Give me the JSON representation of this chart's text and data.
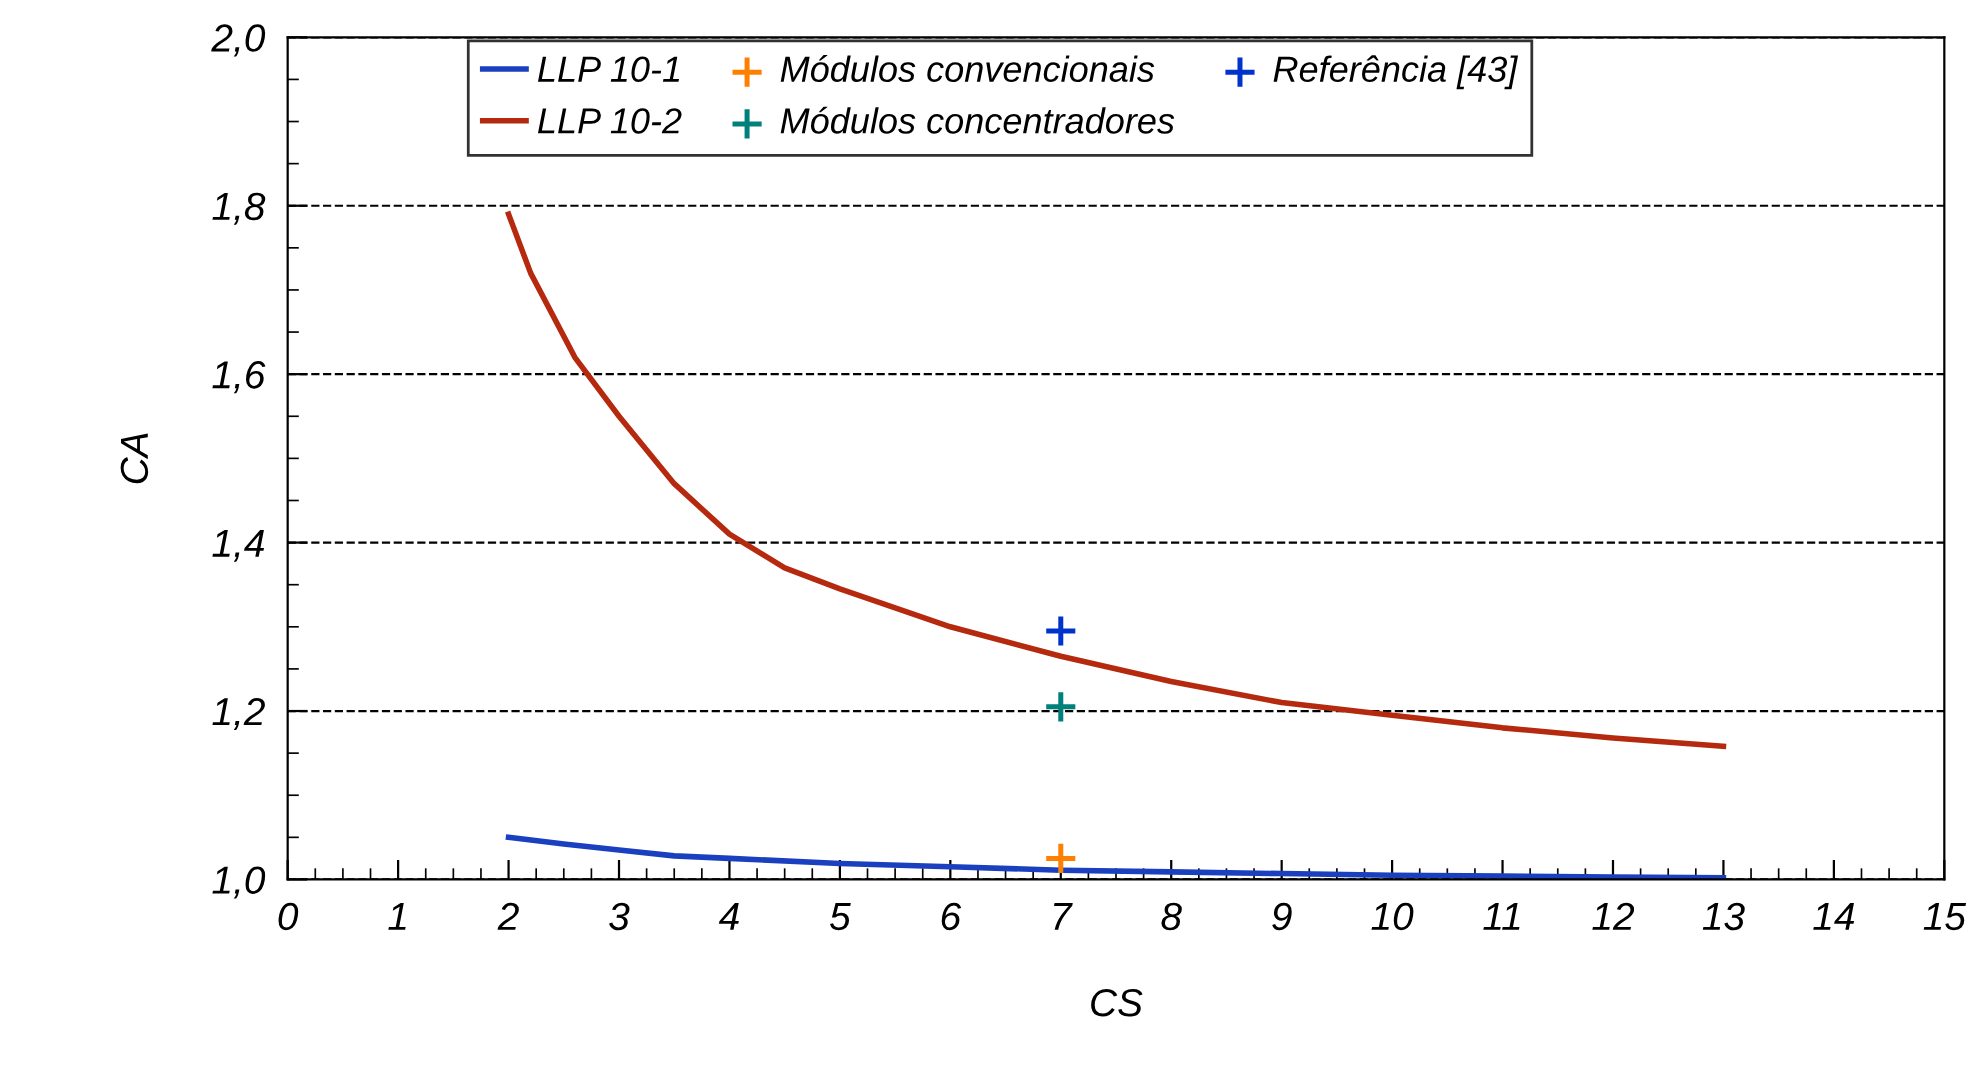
{
  "chart_data": {
    "type": "line",
    "xlabel": "CS",
    "ylabel": "CA",
    "series": [
      {
        "name": "LLP 10-1",
        "color": "#1a3fbf",
        "x": [
          2,
          2.5,
          3,
          3.5,
          4,
          5,
          6,
          7,
          8,
          9,
          10,
          11,
          12,
          13
        ],
        "values": [
          1.05,
          1.042,
          1.035,
          1.028,
          1.025,
          1.019,
          1.015,
          1.011,
          1.009,
          1.007,
          1.005,
          1.004,
          1.003,
          1.002
        ]
      },
      {
        "name": "LLP 10-2",
        "color": "#b52a0e",
        "x": [
          2,
          2.2,
          2.6,
          3,
          3.5,
          4,
          4.5,
          5,
          6,
          7,
          8,
          9,
          10,
          11,
          12,
          13
        ],
        "values": [
          1.79,
          1.72,
          1.62,
          1.55,
          1.47,
          1.41,
          1.37,
          1.345,
          1.3,
          1.265,
          1.235,
          1.21,
          1.195,
          1.18,
          1.168,
          1.158
        ]
      },
      {
        "name": "Módulos convencionais",
        "type": "scatter",
        "marker": "cross",
        "color": "#ff8000",
        "x": [
          7
        ],
        "values": [
          1.025
        ]
      },
      {
        "name": "Módulos concentradores",
        "type": "scatter",
        "marker": "cross",
        "color": "#00807a",
        "x": [
          7
        ],
        "values": [
          1.205
        ]
      },
      {
        "name": "Referência [43]",
        "type": "scatter",
        "marker": "cross",
        "color": "#0033cc",
        "x": [
          7
        ],
        "values": [
          1.295
        ]
      }
    ],
    "xlim": [
      0,
      15
    ],
    "xticks": [
      0,
      1,
      2,
      3,
      4,
      5,
      6,
      7,
      8,
      9,
      10,
      11,
      12,
      13,
      14,
      15
    ],
    "ylim": [
      1.0,
      2.0
    ],
    "yticks": [
      {
        "value": 1.0,
        "label": "1,0"
      },
      {
        "value": 1.2,
        "label": "1,2"
      },
      {
        "value": 1.4,
        "label": "1,4"
      },
      {
        "value": 1.6,
        "label": "1,6"
      },
      {
        "value": 1.8,
        "label": "1,8"
      },
      {
        "value": 2.0,
        "label": "2,0"
      }
    ],
    "grid": "y",
    "legend": "top",
    "line_style": "solid"
  }
}
